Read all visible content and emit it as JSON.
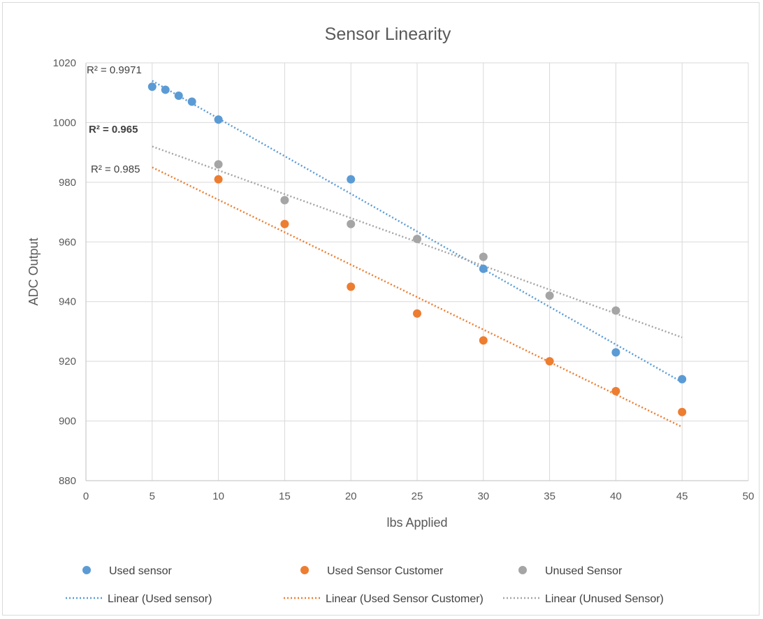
{
  "chart_data": {
    "type": "scatter",
    "title": "Sensor Linearity",
    "xlabel": "lbs Applied",
    "ylabel": "ADC Output",
    "xlim": [
      0,
      50
    ],
    "ylim": [
      880,
      1020
    ],
    "x_ticks": [
      0,
      5,
      10,
      15,
      20,
      25,
      30,
      35,
      40,
      45,
      50
    ],
    "y_ticks": [
      880,
      900,
      920,
      940,
      960,
      980,
      1000,
      1020
    ],
    "grid": true,
    "legend_position": "bottom",
    "series": [
      {
        "name": "Used sensor",
        "color": "#5b9bd5",
        "points": [
          [
            5,
            1012
          ],
          [
            6,
            1011
          ],
          [
            7,
            1009
          ],
          [
            8,
            1007
          ],
          [
            10,
            1001
          ],
          [
            20,
            981
          ],
          [
            30,
            951
          ],
          [
            40,
            923
          ],
          [
            45,
            914
          ]
        ],
        "trendline": {
          "name": "Linear (Used sensor)",
          "x": [
            5,
            45
          ],
          "y": [
            1014,
            913
          ],
          "r2_label": "R² = 0.9971",
          "r2_bold": false
        }
      },
      {
        "name": "Used Sensor Customer",
        "color": "#ed7d31",
        "points": [
          [
            10,
            981
          ],
          [
            15,
            966
          ],
          [
            20,
            945
          ],
          [
            25,
            936
          ],
          [
            30,
            927
          ],
          [
            35,
            920
          ],
          [
            40,
            910
          ],
          [
            45,
            903
          ]
        ],
        "trendline": {
          "name": "Linear (Used Sensor Customer)",
          "x": [
            5,
            45
          ],
          "y": [
            985,
            898
          ],
          "r2_label": "R² = 0.985",
          "r2_bold": false
        }
      },
      {
        "name": "Unused Sensor",
        "color": "#a5a5a5",
        "points": [
          [
            10,
            986
          ],
          [
            15,
            974
          ],
          [
            20,
            966
          ],
          [
            25,
            961
          ],
          [
            30,
            955
          ],
          [
            35,
            942
          ],
          [
            40,
            937
          ]
        ],
        "trendline": {
          "name": "Linear (Unused Sensor)",
          "x": [
            5,
            45
          ],
          "y": [
            992,
            928
          ],
          "r2_label": "R² = 0.965",
          "r2_bold": true
        }
      }
    ]
  }
}
